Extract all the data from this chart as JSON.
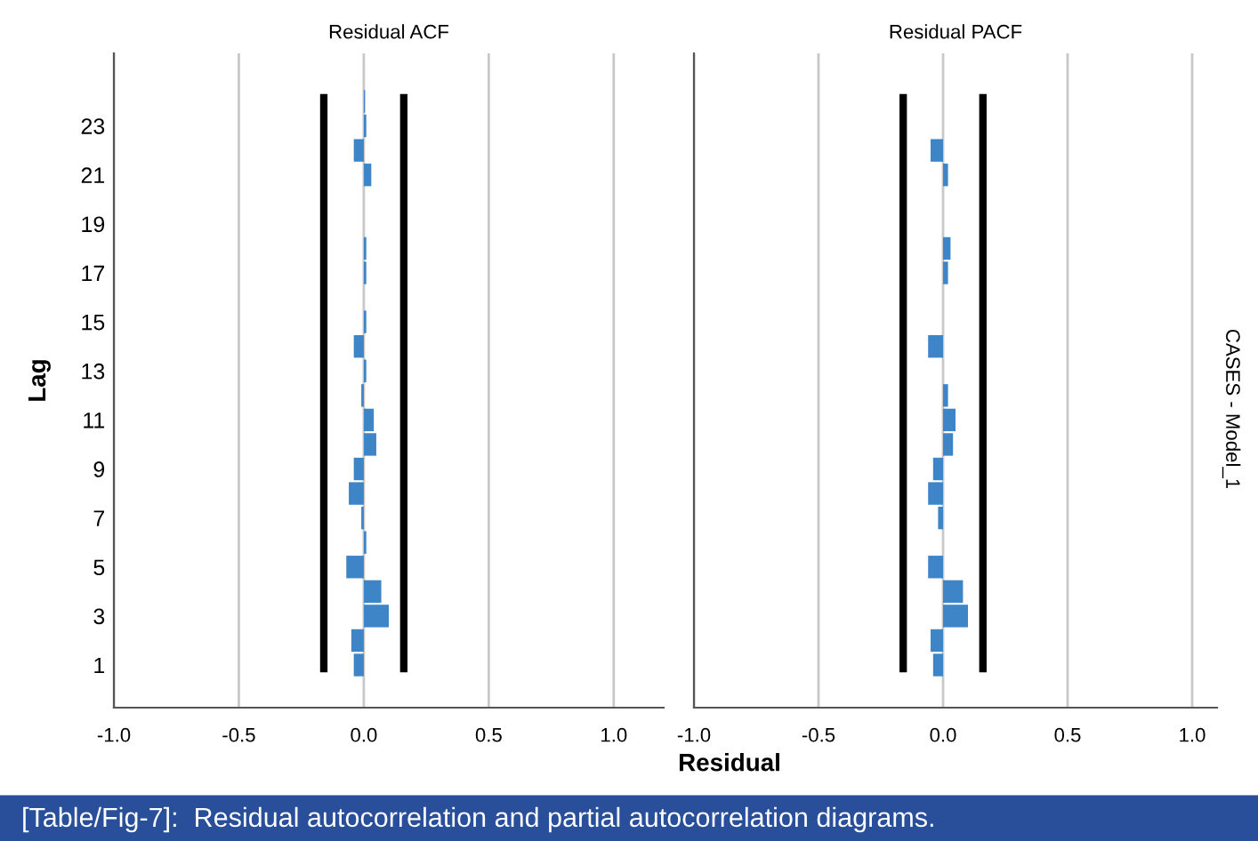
{
  "chart_data": [
    {
      "type": "bar",
      "orientation": "horizontal",
      "title": "Residual ACF",
      "xlabel": "Residual",
      "ylabel": "Lag",
      "categories": [
        null,
        "23",
        null,
        "21",
        null,
        "19",
        null,
        "17",
        null,
        "15",
        null,
        "13",
        null,
        "11",
        null,
        "9",
        null,
        "7",
        null,
        "5",
        null,
        "3",
        null,
        "1"
      ],
      "series": [
        {
          "color": "#3d85c6",
          "values": [
            0.005,
            0.01,
            -0.04,
            0.03,
            0.0,
            0.0,
            0.01,
            0.01,
            0.0,
            0.01,
            -0.04,
            0.01,
            -0.01,
            0.04,
            0.05,
            -0.04,
            -0.06,
            -0.01,
            0.01,
            -0.07,
            0.07,
            0.1,
            -0.05,
            -0.04
          ]
        }
      ],
      "xlim": [
        -1.0,
        1.2
      ],
      "xticks": [
        {
          "value": -1.0,
          "label": "-1.0"
        },
        {
          "value": -0.5,
          "label": "-0.5"
        },
        {
          "value": 0.0,
          "label": "0.0"
        },
        {
          "value": 0.5,
          "label": "0.5"
        },
        {
          "value": 1.0,
          "label": "1.0"
        }
      ],
      "grid": "x",
      "ref_lines": [
        {
          "axis": "x",
          "value": -0.16,
          "color": "#000000"
        },
        {
          "axis": "x",
          "value": 0.16,
          "color": "#000000"
        }
      ],
      "annotations": [
        "[Table/Fig-7]:  Residual autocorrelation and partial autocorrelation diagrams."
      ]
    },
    {
      "type": "bar",
      "orientation": "horizontal",
      "title": "Residual PACF",
      "categories": [
        null,
        "23",
        null,
        "21",
        null,
        "19",
        null,
        "17",
        null,
        "15",
        null,
        "13",
        null,
        "11",
        null,
        "9",
        null,
        "7",
        null,
        "5",
        null,
        "3",
        null,
        "1"
      ],
      "series": [
        {
          "color": "#3d85c6",
          "values": [
            0.0,
            0.0,
            -0.05,
            0.02,
            0.0,
            0.0,
            0.03,
            0.02,
            0.0,
            0.0,
            -0.06,
            0.0,
            0.02,
            0.05,
            0.04,
            -0.04,
            -0.06,
            -0.02,
            0.0,
            -0.06,
            0.08,
            0.1,
            -0.05,
            -0.04
          ]
        }
      ],
      "xlim": [
        -1.0,
        1.1
      ],
      "xticks": [
        {
          "value": -1.0,
          "label": "-1.0"
        },
        {
          "value": -0.5,
          "label": "-0.5"
        },
        {
          "value": 0.0,
          "label": "0.0"
        },
        {
          "value": 0.5,
          "label": "0.5"
        },
        {
          "value": 1.0,
          "label": "1.0"
        }
      ],
      "grid": "x",
      "tick_labels": "x",
      "ref_lines": [
        {
          "axis": "x",
          "value": -0.16,
          "color": "#000000"
        },
        {
          "axis": "x",
          "value": 0.16,
          "color": "#000000"
        }
      ],
      "annotations": [
        "CASES - Model_1"
      ]
    }
  ]
}
